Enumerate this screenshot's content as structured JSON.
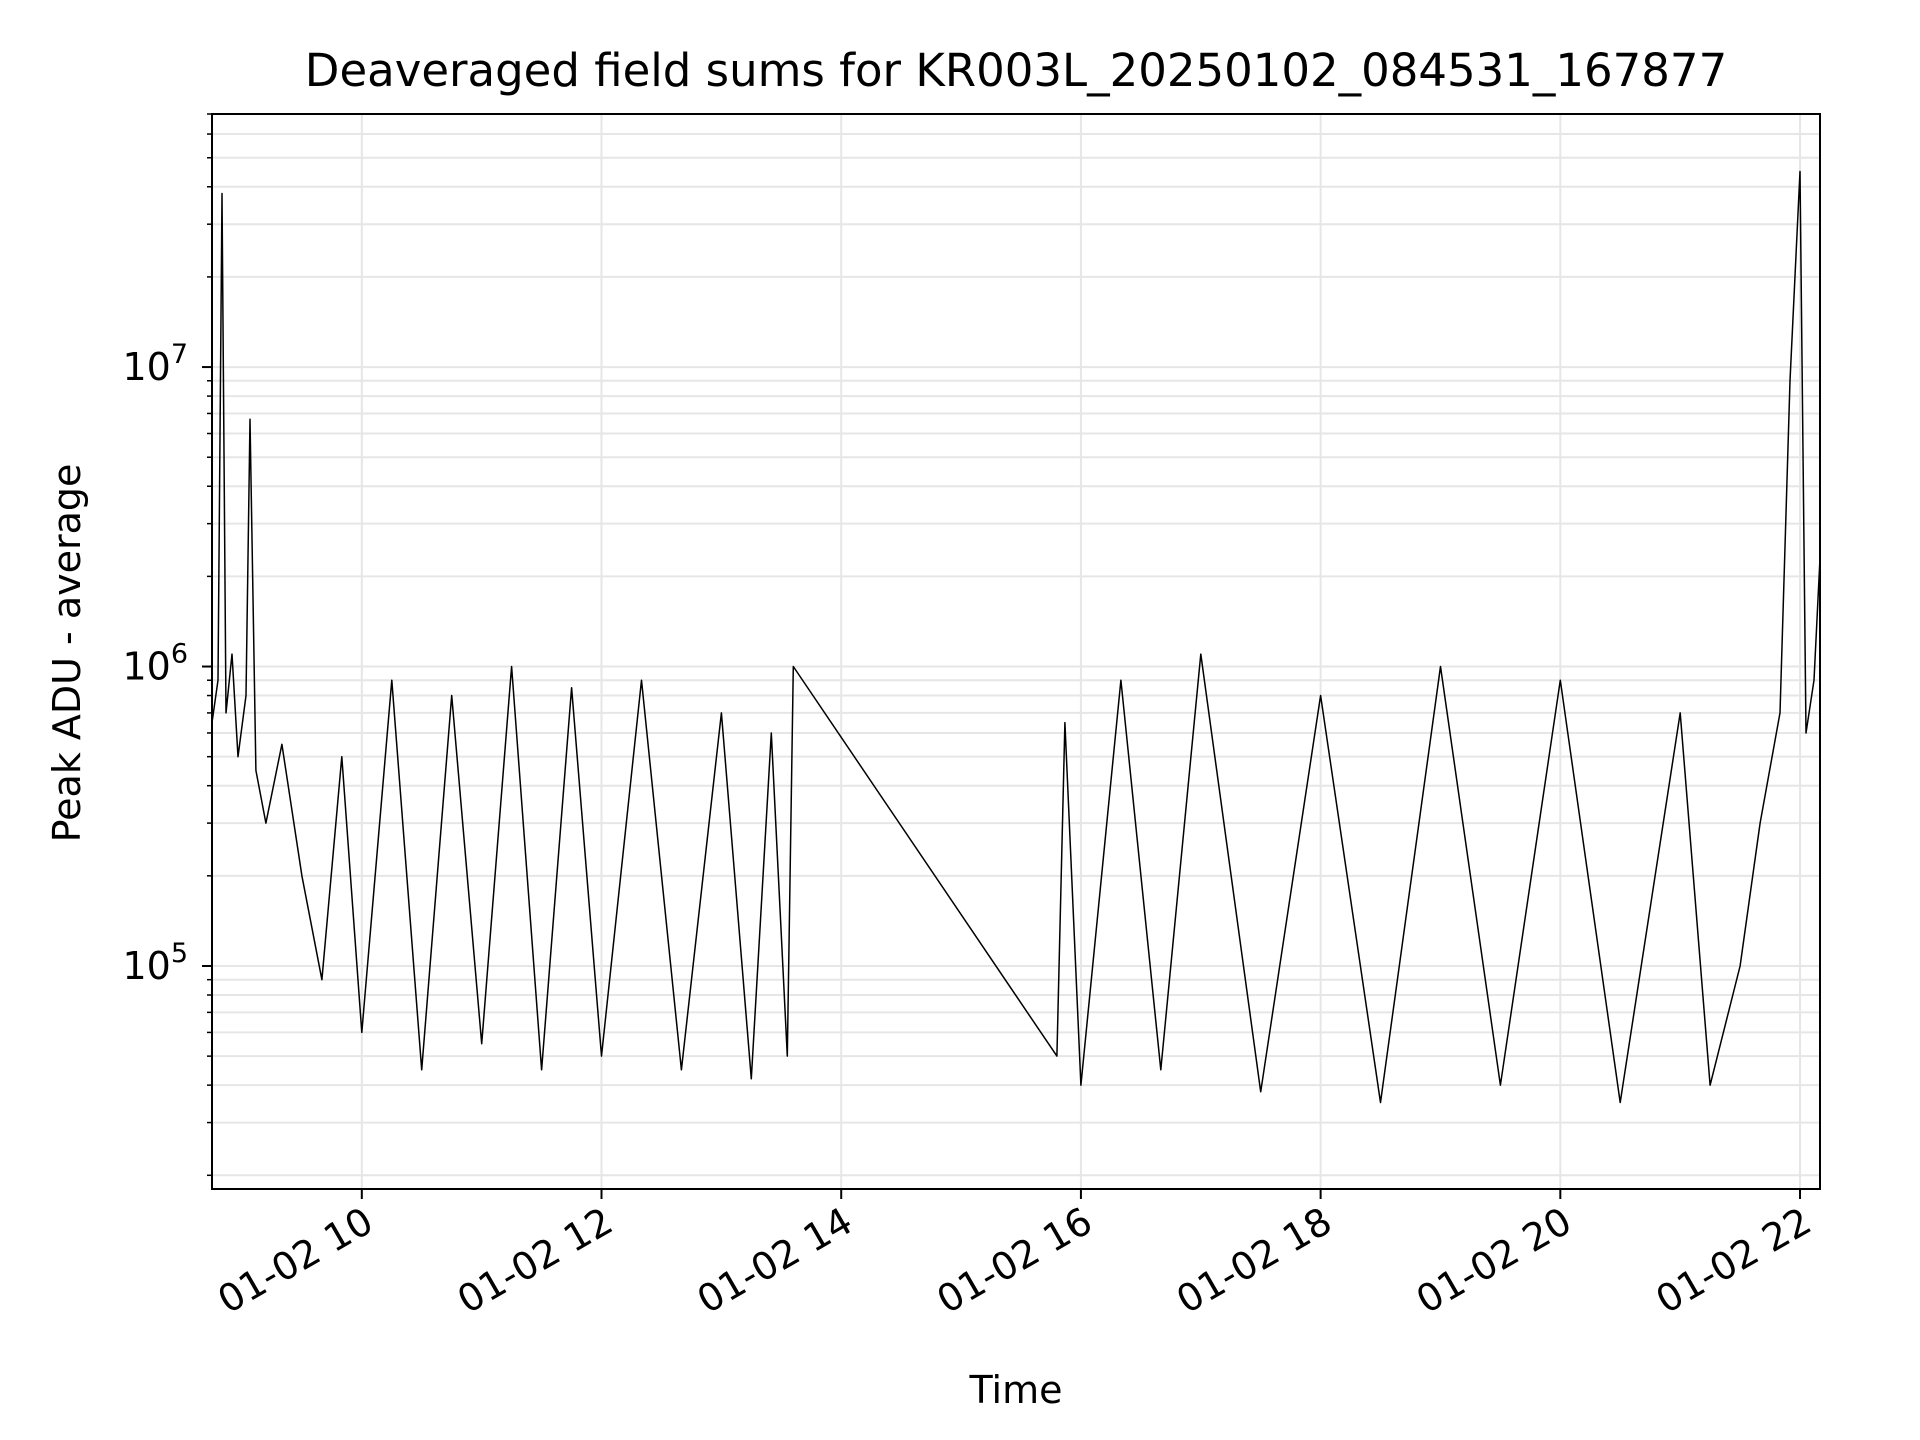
{
  "chart_data": {
    "type": "line",
    "title": "Deaveraged field sums for KR003L_20250102_084531_167877",
    "xlabel": "Time",
    "ylabel": "Peak ADU - average",
    "yscale": "log",
    "xlim": [
      "2025-01-02T08:45",
      "2025-01-02T22:10"
    ],
    "ylim": [
      18000,
      70000000
    ],
    "grid": true,
    "line_color": "#000000",
    "x_ticks": [
      {
        "value": "2025-01-02T10:00",
        "label": "01-02 10"
      },
      {
        "value": "2025-01-02T12:00",
        "label": "01-02 12"
      },
      {
        "value": "2025-01-02T14:00",
        "label": "01-02 14"
      },
      {
        "value": "2025-01-02T16:00",
        "label": "01-02 16"
      },
      {
        "value": "2025-01-02T18:00",
        "label": "01-02 18"
      },
      {
        "value": "2025-01-02T20:00",
        "label": "01-02 20"
      },
      {
        "value": "2025-01-02T22:00",
        "label": "01-02 22"
      }
    ],
    "y_ticks": [
      {
        "value": 100000,
        "base": "10",
        "exp": "5"
      },
      {
        "value": 1000000,
        "base": "10",
        "exp": "6"
      },
      {
        "value": 10000000,
        "base": "10",
        "exp": "7"
      }
    ],
    "series": [
      {
        "values": [
          [
            "2025-01-02T08:45",
            650000
          ],
          [
            "2025-01-02T08:48",
            900000
          ],
          [
            "2025-01-02T08:50",
            38000000
          ],
          [
            "2025-01-02T08:52",
            700000
          ],
          [
            "2025-01-02T08:55",
            1100000
          ],
          [
            "2025-01-02T08:58",
            500000
          ],
          [
            "2025-01-02T09:02",
            800000
          ],
          [
            "2025-01-02T09:04",
            6700000
          ],
          [
            "2025-01-02T09:07",
            450000
          ],
          [
            "2025-01-02T09:12",
            300000
          ],
          [
            "2025-01-02T09:20",
            550000
          ],
          [
            "2025-01-02T09:30",
            200000
          ],
          [
            "2025-01-02T09:40",
            90000
          ],
          [
            "2025-01-02T09:50",
            500000
          ],
          [
            "2025-01-02T10:00",
            60000
          ],
          [
            "2025-01-02T10:15",
            900000
          ],
          [
            "2025-01-02T10:30",
            45000
          ],
          [
            "2025-01-02T10:45",
            800000
          ],
          [
            "2025-01-02T11:00",
            55000
          ],
          [
            "2025-01-02T11:15",
            1000000
          ],
          [
            "2025-01-02T11:30",
            45000
          ],
          [
            "2025-01-02T11:45",
            850000
          ],
          [
            "2025-01-02T12:00",
            50000
          ],
          [
            "2025-01-02T12:20",
            900000
          ],
          [
            "2025-01-02T12:40",
            45000
          ],
          [
            "2025-01-02T13:00",
            700000
          ],
          [
            "2025-01-02T13:15",
            42000
          ],
          [
            "2025-01-02T13:25",
            600000
          ],
          [
            "2025-01-02T13:33",
            50000
          ],
          [
            "2025-01-02T13:36",
            1000000
          ],
          [
            "2025-01-02T15:48",
            50000
          ],
          [
            "2025-01-02T15:52",
            650000
          ],
          [
            "2025-01-02T16:00",
            40000
          ],
          [
            "2025-01-02T16:20",
            900000
          ],
          [
            "2025-01-02T16:40",
            45000
          ],
          [
            "2025-01-02T17:00",
            1100000
          ],
          [
            "2025-01-02T17:30",
            38000
          ],
          [
            "2025-01-02T18:00",
            800000
          ],
          [
            "2025-01-02T18:30",
            35000
          ],
          [
            "2025-01-02T19:00",
            1000000
          ],
          [
            "2025-01-02T19:30",
            40000
          ],
          [
            "2025-01-02T20:00",
            900000
          ],
          [
            "2025-01-02T20:30",
            35000
          ],
          [
            "2025-01-02T21:00",
            700000
          ],
          [
            "2025-01-02T21:15",
            40000
          ],
          [
            "2025-01-02T21:30",
            100000
          ],
          [
            "2025-01-02T21:40",
            300000
          ],
          [
            "2025-01-02T21:50",
            700000
          ],
          [
            "2025-01-02T21:55",
            9000000
          ],
          [
            "2025-01-02T22:00",
            45000000
          ],
          [
            "2025-01-02T22:03",
            600000
          ],
          [
            "2025-01-02T22:07",
            900000
          ],
          [
            "2025-01-02T22:10",
            2300000
          ]
        ]
      }
    ]
  }
}
